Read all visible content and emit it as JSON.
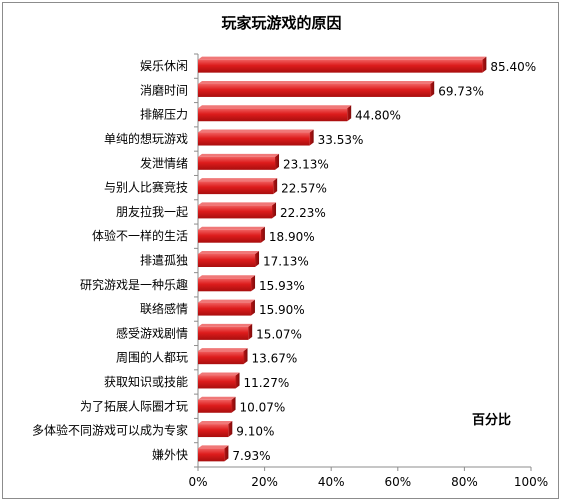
{
  "chart_data": {
    "type": "bar",
    "orientation": "horizontal",
    "title": "玩家玩游戏的原因",
    "unit_label": "百分比",
    "categories": [
      "娱乐休闲",
      "消磨时间",
      "排解压力",
      "单纯的想玩游戏",
      "发泄情绪",
      "与别人比赛竞技",
      "朋友拉我一起",
      "体验不一样的生活",
      "排遣孤独",
      "研究游戏是一种乐趣",
      "联络感情",
      "感受游戏剧情",
      "周围的人都玩",
      "获取知识或技能",
      "为了拓展人际圈才玩",
      "多体验不同游戏可以成为专家",
      "嫌外快"
    ],
    "values": [
      85.4,
      69.73,
      44.8,
      33.53,
      23.13,
      22.57,
      22.23,
      18.9,
      17.13,
      15.93,
      15.9,
      15.07,
      13.67,
      11.27,
      10.07,
      9.1,
      7.93
    ],
    "value_labels": [
      "85.40%",
      "69.73%",
      "44.80%",
      "33.53%",
      "23.13%",
      "22.57%",
      "22.23%",
      "18.90%",
      "17.13%",
      "15.93%",
      "15.90%",
      "15.07%",
      "13.67%",
      "11.27%",
      "10.07%",
      "9.10%",
      "7.93%"
    ],
    "xticks": [
      "0%",
      "20%",
      "40%",
      "60%",
      "80%",
      "100%"
    ],
    "xlim": [
      0,
      100
    ],
    "grid": false,
    "bar_color": "#d42020"
  }
}
